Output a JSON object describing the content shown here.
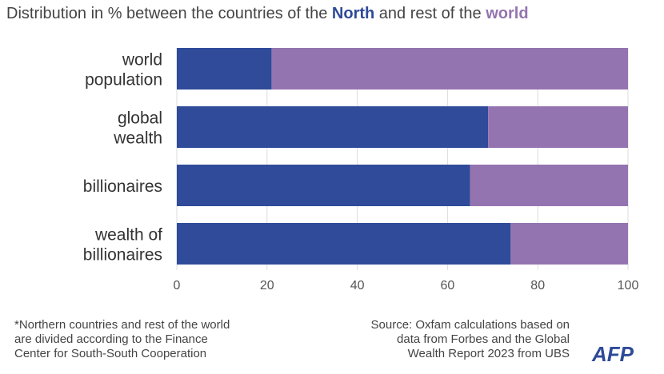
{
  "chart_data": {
    "type": "bar",
    "orientation": "horizontal",
    "stacked": true,
    "title_parts": [
      "Distribution in % between the countries of the ",
      "North",
      " and rest of the ",
      "world"
    ],
    "categories": [
      [
        "world",
        "population"
      ],
      [
        "global",
        "wealth"
      ],
      [
        "billionaires"
      ],
      [
        "wealth of",
        "billionaires"
      ]
    ],
    "series": [
      {
        "name": "North",
        "color": "#2f4b99",
        "values": [
          21,
          69,
          65,
          74
        ]
      },
      {
        "name": "world",
        "color": "#9474b0",
        "values": [
          79,
          31,
          35,
          26
        ]
      }
    ],
    "xlim": [
      0,
      100
    ],
    "xticks": [
      "0",
      "20",
      "40",
      "60",
      "80",
      "100"
    ],
    "grid": true
  },
  "footnote": [
    "*Northern countries and rest of the world",
    "are divided according to the Finance",
    "Center for South-South Cooperation"
  ],
  "source": [
    "Source: Oxfam calculations based on",
    "data from Forbes and the Global",
    "Wealth Report 2023 from UBS"
  ],
  "logo": "AFP"
}
